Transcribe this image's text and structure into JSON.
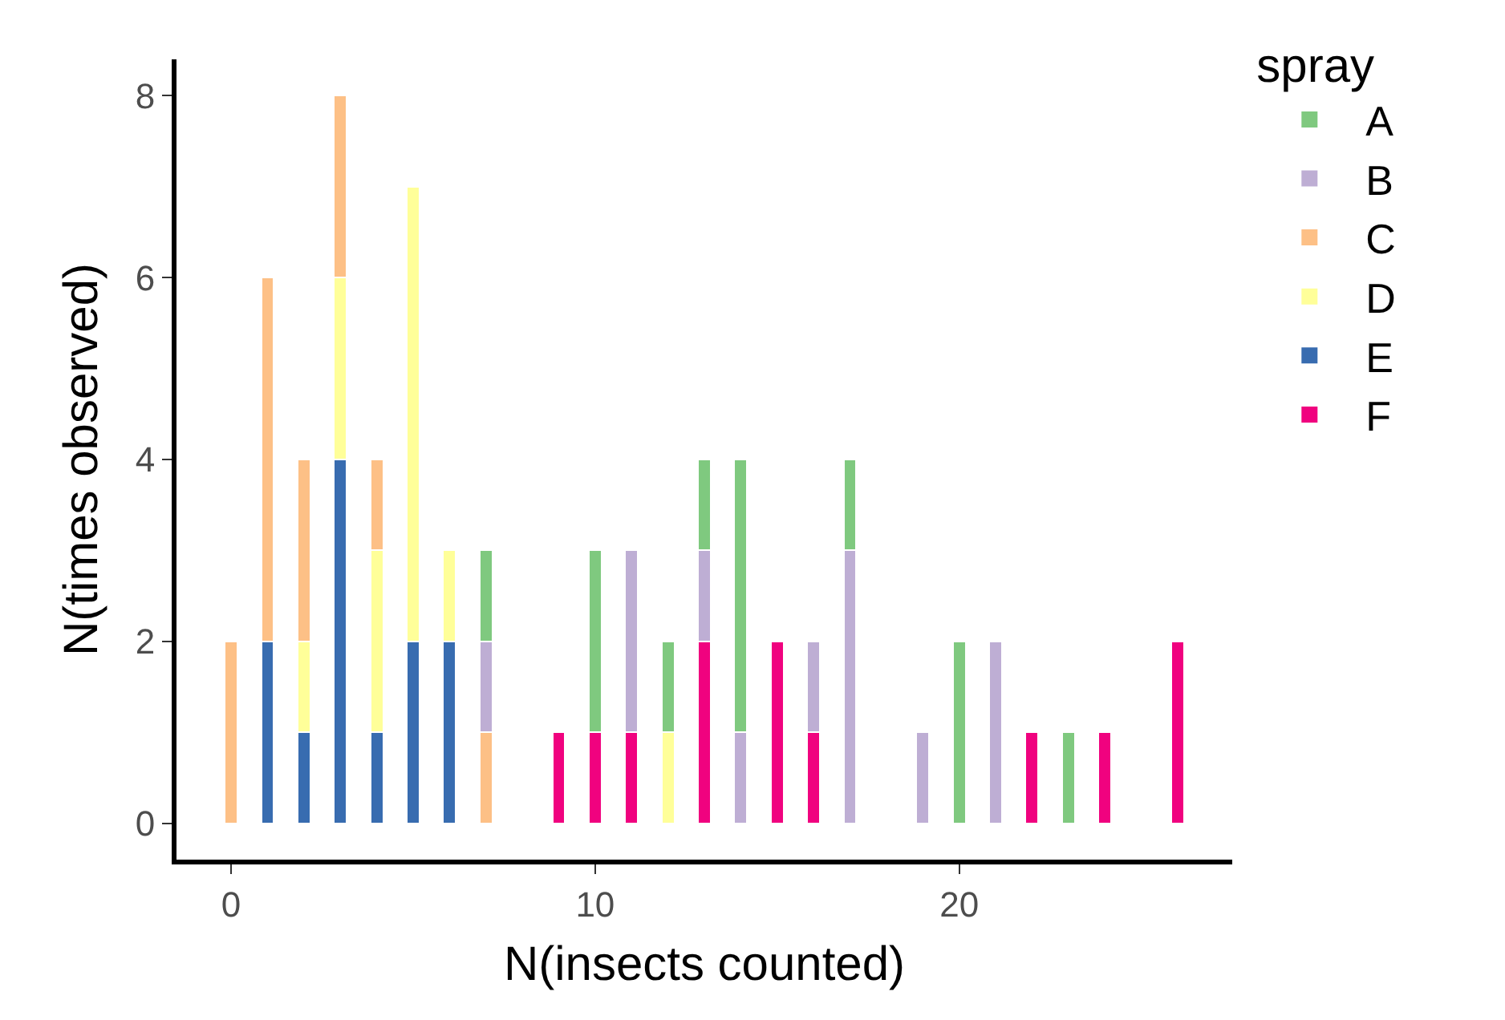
{
  "chart_data": {
    "type": "bar",
    "stacked": true,
    "xlabel": "N(insects counted)",
    "ylabel": "N(times observed)",
    "legend_title": "spray",
    "legend": "right",
    "x": [
      0,
      1,
      2,
      3,
      4,
      5,
      6,
      7,
      9,
      10,
      11,
      12,
      13,
      14,
      15,
      16,
      17,
      19,
      20,
      21,
      22,
      23,
      24,
      26
    ],
    "series": [
      {
        "name": "F",
        "color": "#f0027f",
        "values": [
          null,
          null,
          null,
          null,
          null,
          null,
          null,
          null,
          1,
          1,
          1,
          null,
          2,
          null,
          2,
          1,
          null,
          null,
          null,
          null,
          1,
          null,
          1,
          2
        ]
      },
      {
        "name": "E",
        "color": "#386cb0",
        "values": [
          null,
          2,
          1,
          4,
          1,
          2,
          2,
          null,
          null,
          null,
          null,
          null,
          null,
          null,
          null,
          null,
          null,
          null,
          null,
          null,
          null,
          null,
          null,
          null
        ]
      },
      {
        "name": "D",
        "color": "#ffff99",
        "values": [
          null,
          null,
          1,
          2,
          2,
          5,
          1,
          null,
          null,
          null,
          null,
          1,
          null,
          null,
          null,
          null,
          null,
          null,
          null,
          null,
          null,
          null,
          null,
          null
        ]
      },
      {
        "name": "C",
        "color": "#fdc086",
        "values": [
          2,
          4,
          2,
          2,
          1,
          null,
          null,
          1,
          null,
          null,
          null,
          null,
          null,
          null,
          null,
          null,
          null,
          null,
          null,
          null,
          null,
          null,
          null,
          null
        ]
      },
      {
        "name": "B",
        "color": "#beaed4",
        "values": [
          null,
          null,
          null,
          null,
          null,
          null,
          null,
          1,
          null,
          null,
          2,
          null,
          1,
          1,
          null,
          1,
          3,
          1,
          null,
          2,
          null,
          null,
          null,
          null
        ]
      },
      {
        "name": "A",
        "color": "#7fc97f",
        "values": [
          null,
          null,
          null,
          null,
          null,
          null,
          null,
          1,
          null,
          2,
          null,
          1,
          1,
          3,
          null,
          null,
          1,
          null,
          2,
          null,
          null,
          1,
          null,
          null
        ]
      }
    ],
    "xlim": [
      -1.5,
      27.5
    ],
    "xticks": [
      0,
      10,
      20
    ],
    "ylim": [
      -0.4,
      8.4
    ],
    "yticks": [
      0,
      2,
      4,
      6,
      8
    ]
  }
}
